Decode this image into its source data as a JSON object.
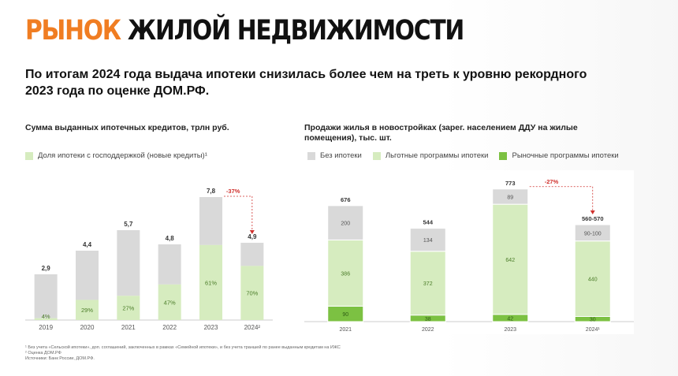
{
  "header": {
    "title_accent": "РЫНОК",
    "title_rest": "ЖИЛОЙ НЕДВИЖИМОСТИ",
    "subtitle": "По итогам 2024 года выдача ипотеки снизилась более чем на треть к уровню рекордного 2023 года по оценке ДОМ.РФ."
  },
  "colors": {
    "accent": "#f07d22",
    "gray": "#d9d9d9",
    "light_green": "#d6ecbf",
    "green": "#7cc142",
    "red": "#d0312d"
  },
  "chart_data": [
    {
      "type": "bar",
      "title": "Сумма выданных ипотечных кредитов, трлн руб.",
      "legend": [
        "Доля ипотеки с господдержкой (новые кредиты)¹"
      ],
      "categories": [
        "2019",
        "2020",
        "2021",
        "2022",
        "2023",
        "2024²"
      ],
      "totals": [
        2.9,
        4.4,
        5.7,
        4.8,
        7.8,
        4.9
      ],
      "total_labels": [
        "2,9",
        "4,4",
        "5,7",
        "4,8",
        "7,8",
        "4,9"
      ],
      "state_support_share": [
        4,
        29,
        27,
        47,
        61,
        70
      ],
      "share_labels": [
        "4%",
        "29%",
        "27%",
        "47%",
        "61%",
        "70%"
      ],
      "ylim": [
        0,
        9.5
      ],
      "annotation": "-37%"
    },
    {
      "type": "bar",
      "title": "Продажи жилья в новостройках (зарег. населением ДДУ на жилые помещения), тыс. шт.",
      "legend": [
        "Без ипотеки",
        "Льготные программы ипотеки",
        "Рыночные программы ипотеки"
      ],
      "categories": [
        "2021",
        "2022",
        "2023",
        "2024¹"
      ],
      "series": [
        {
          "name": "Рыночные программы ипотеки",
          "values": [
            90,
            38,
            42,
            30
          ],
          "labels": [
            "90",
            "38",
            "42",
            "30"
          ]
        },
        {
          "name": "Льготные программы ипотеки",
          "values": [
            386,
            372,
            642,
            440
          ],
          "labels": [
            "386",
            "372",
            "642",
            "440"
          ]
        },
        {
          "name": "Без ипотеки",
          "values": [
            200,
            134,
            89,
            95
          ],
          "labels": [
            "200",
            "134",
            "89",
            "90-100"
          ]
        }
      ],
      "total_labels": [
        "676",
        "544",
        "773",
        "560-570"
      ],
      "ylim": [
        0,
        850
      ],
      "annotation": "-27%"
    }
  ],
  "footnotes": [
    "¹ Без учета «Сельской ипотеки», доп. соглашений, заключенных в рамках «Семейной ипотеки», и без учета траншей по ранее выданным кредитам на ИЖС",
    "² Оценка ДОМ.РФ",
    "Источники: Банк России, ДОМ.РФ."
  ]
}
